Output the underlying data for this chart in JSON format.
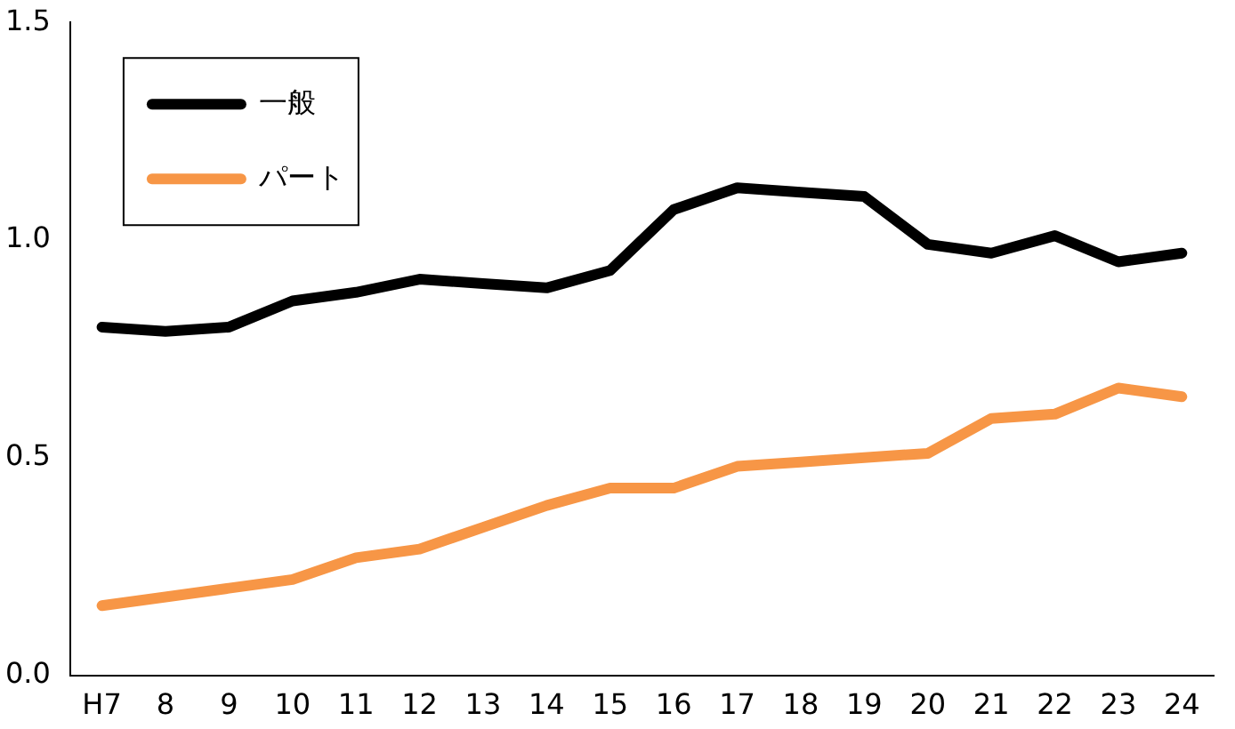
{
  "chart_data": {
    "type": "line",
    "categories": [
      "H7",
      "8",
      "9",
      "10",
      "11",
      "12",
      "13",
      "14",
      "15",
      "16",
      "17",
      "18",
      "19",
      "20",
      "21",
      "22",
      "23",
      "24"
    ],
    "series": [
      {
        "name": "一般",
        "color": "#000000",
        "values": [
          0.8,
          0.79,
          0.8,
          0.86,
          0.88,
          0.91,
          0.9,
          0.89,
          0.93,
          1.07,
          1.12,
          1.11,
          1.1,
          0.99,
          0.97,
          1.01,
          0.95,
          0.97
        ]
      },
      {
        "name": "パート",
        "color": "#f79646",
        "values": [
          0.16,
          0.18,
          0.2,
          0.22,
          0.27,
          0.29,
          0.34,
          0.39,
          0.43,
          0.43,
          0.48,
          0.49,
          0.5,
          0.51,
          0.59,
          0.6,
          0.66,
          0.64
        ]
      }
    ],
    "ylim": [
      0,
      1.5
    ],
    "yticks": [
      {
        "value": 0,
        "label": "0.0"
      },
      {
        "value": 0.5,
        "label": "0.5"
      },
      {
        "value": 1,
        "label": "1.0"
      },
      {
        "value": 1.5,
        "label": "1.5"
      }
    ],
    "grid": false,
    "legend": "top left",
    "marker": "none",
    "line_style": "solid"
  }
}
